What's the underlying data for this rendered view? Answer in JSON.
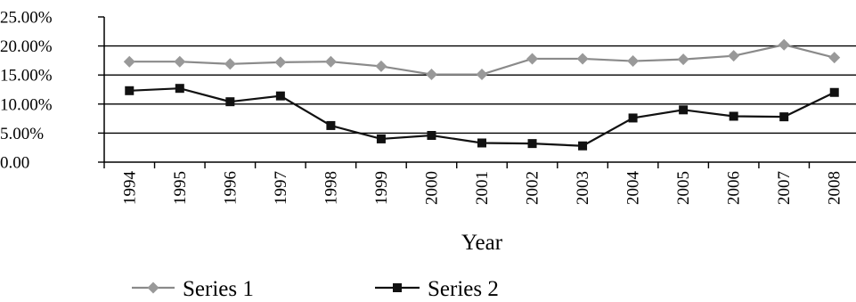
{
  "chart_data": {
    "type": "line",
    "categories": [
      "1994",
      "1995",
      "1996",
      "1997",
      "1998",
      "1999",
      "2000",
      "2001",
      "2002",
      "2003",
      "2004",
      "2005",
      "2006",
      "2007",
      "2008"
    ],
    "series": [
      {
        "name": "Series 1",
        "marker": "diamond",
        "color": "#999999",
        "values": [
          17.3,
          17.3,
          16.9,
          17.2,
          17.3,
          16.5,
          15.1,
          15.1,
          17.8,
          17.8,
          17.4,
          17.7,
          18.3,
          20.2,
          18.0
        ]
      },
      {
        "name": "Series 2",
        "marker": "square",
        "color": "#111111",
        "values": [
          12.3,
          12.7,
          10.4,
          11.4,
          6.3,
          4.0,
          4.6,
          3.3,
          3.2,
          2.8,
          7.6,
          9.0,
          7.9,
          7.8,
          12.0
        ]
      }
    ],
    "yticks": [
      {
        "value": 0,
        "label": "0.00"
      },
      {
        "value": 5,
        "label": "5.00%"
      },
      {
        "value": 10,
        "label": "10.00%"
      },
      {
        "value": 15,
        "label": "15.00%"
      },
      {
        "value": 20,
        "label": "20.00%"
      },
      {
        "value": 25,
        "label": "25.00%"
      }
    ],
    "ylim": [
      0,
      25
    ],
    "xlabel": "Year",
    "ylabel": "",
    "title": "",
    "grid": "horizontal",
    "legend_position": "bottom"
  }
}
